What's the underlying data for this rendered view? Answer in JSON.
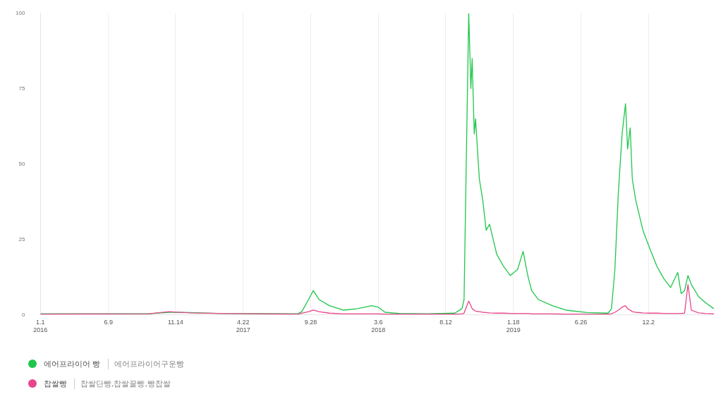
{
  "chart_data": {
    "type": "line",
    "x": [
      "2016-01-01",
      "2016-09-11",
      "2016-10-30",
      "2016-12-18",
      "2017-02-22",
      "2017-08-29",
      "2017-09-07",
      "2017-09-23",
      "2017-10-04",
      "2017-10-18",
      "2017-11-11",
      "2017-12-14",
      "2018-01-16",
      "2018-02-18",
      "2018-03-06",
      "2018-03-22",
      "2018-04-24",
      "2018-06-29",
      "2018-09-02",
      "2018-09-19",
      "2018-09-24",
      "2018-09-28",
      "2018-10-05",
      "2018-10-10",
      "2018-10-13",
      "2018-10-18",
      "2018-10-21",
      "2018-10-30",
      "2018-11-07",
      "2018-11-15",
      "2018-11-23",
      "2018-12-10",
      "2018-12-26",
      "2019-01-11",
      "2019-01-28",
      "2019-02-10",
      "2019-02-21",
      "2019-03-02",
      "2019-03-18",
      "2019-04-20",
      "2019-05-22",
      "2019-07-11",
      "2019-08-29",
      "2019-09-06",
      "2019-09-14",
      "2019-09-22",
      "2019-10-01",
      "2019-10-09",
      "2019-10-14",
      "2019-10-20",
      "2019-10-25",
      "2019-11-02",
      "2019-11-19",
      "2019-12-05",
      "2019-12-22",
      "2020-01-07",
      "2020-01-23",
      "2020-02-09",
      "2020-02-17",
      "2020-02-25",
      "2020-03-04",
      "2020-03-12",
      "2020-03-29",
      "2020-04-14",
      "2020-05-04"
    ],
    "series": [
      {
        "name": "에어프라이어 빵",
        "color": "#1ec74b",
        "values": [
          0.3,
          0.3,
          0.8,
          0.7,
          0.4,
          0.3,
          1,
          5,
          8,
          5,
          3,
          1.5,
          2,
          3,
          2.5,
          0.8,
          0.4,
          0.3,
          0.5,
          2,
          5,
          40,
          100,
          75,
          85,
          60,
          65,
          45,
          38,
          28,
          30,
          20,
          16,
          13,
          15,
          21,
          13,
          8,
          5,
          3,
          1.5,
          0.7,
          0.5,
          2,
          15,
          40,
          60,
          70,
          55,
          62,
          45,
          38,
          28,
          22,
          16,
          12,
          9,
          14,
          7,
          8,
          13,
          10,
          6,
          4,
          2
        ]
      },
      {
        "name": "찹쌀빵",
        "color": "#e8458b",
        "values": [
          0.2,
          0.3,
          1,
          0.6,
          0.4,
          0.2,
          0.5,
          1,
          1.5,
          1,
          0.5,
          0.3,
          0.3,
          0.3,
          0.3,
          0.2,
          0.2,
          0.2,
          0.2,
          0.3,
          0.5,
          2,
          4.5,
          3,
          2,
          1.5,
          1.2,
          1,
          0.8,
          0.7,
          0.6,
          0.5,
          0.5,
          0.4,
          0.4,
          0.4,
          0.4,
          0.3,
          0.3,
          0.3,
          0.2,
          0.2,
          0.2,
          0.3,
          0.8,
          1.5,
          2.5,
          3,
          2,
          1.5,
          1,
          0.8,
          0.6,
          0.5,
          0.5,
          0.4,
          0.4,
          0.4,
          0.4,
          0.5,
          10,
          1.5,
          0.6,
          0.4,
          0.3
        ]
      }
    ],
    "annotations": [
      "에어프라이어구운빵",
      "찹쌀단빵,찹쌀꿀빵,빵찹쌀"
    ],
    "xlim": [
      "2016-01-01",
      "2020-05-04"
    ],
    "xticks": [
      {
        "value": "2016-01-01",
        "label": "1.1\n2016"
      },
      {
        "value": "2016-06-09",
        "label": "6.9"
      },
      {
        "value": "2016-11-14",
        "label": "11.14"
      },
      {
        "value": "2017-04-22",
        "label": "4.22\n2017"
      },
      {
        "value": "2017-09-28",
        "label": "9.28"
      },
      {
        "value": "2018-03-06",
        "label": "3.6\n2018"
      },
      {
        "value": "2018-08-12",
        "label": "8.12"
      },
      {
        "value": "2019-01-18",
        "label": "1.18\n2019"
      },
      {
        "value": "2019-06-26",
        "label": "6.26"
      },
      {
        "value": "2019-12-02",
        "label": "12.2"
      }
    ],
    "ylim": [
      0,
      100
    ],
    "yticks": [
      0,
      25,
      50,
      75,
      100
    ],
    "grid": "x",
    "legend": "bottom left",
    "marker": "none",
    "line_style": "solid"
  }
}
